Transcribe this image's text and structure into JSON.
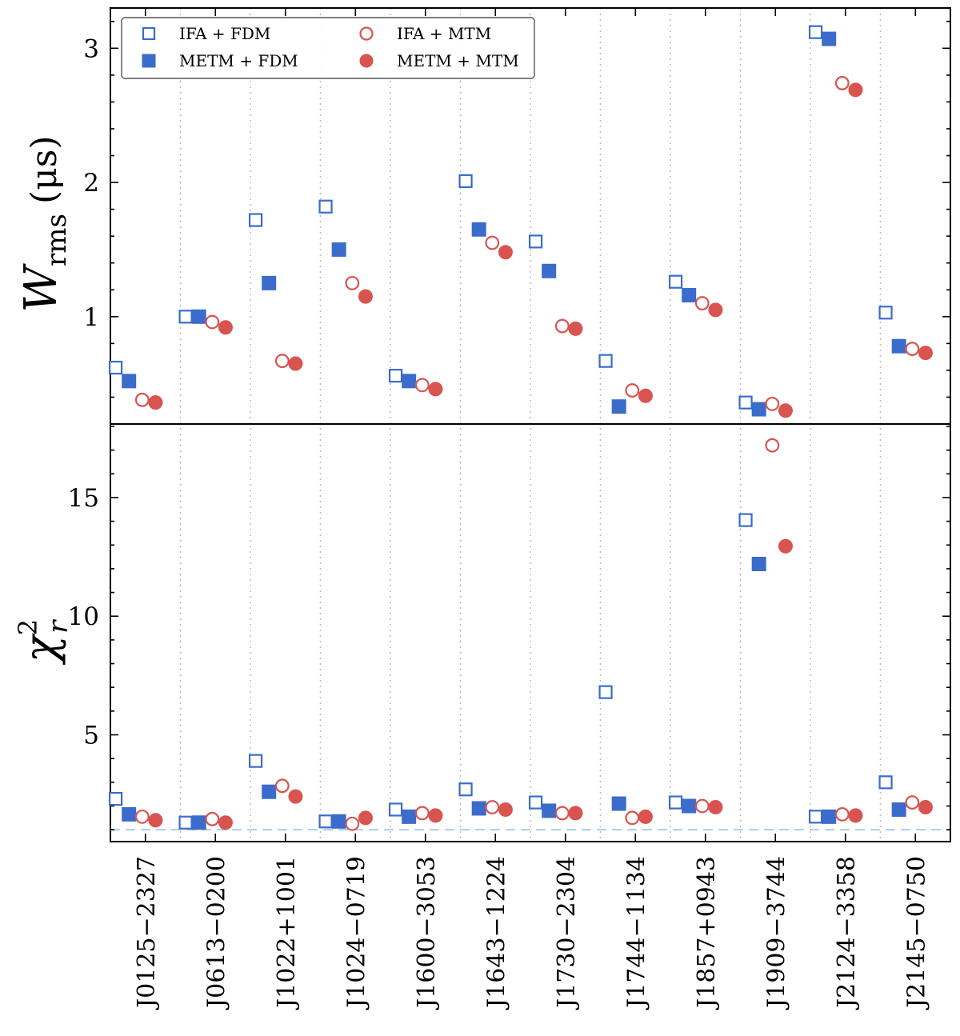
{
  "chart_data": {
    "type": "scatter",
    "categories": [
      "J0125−2327",
      "J0613−0200",
      "J1022+1001",
      "J1024−0719",
      "J1600−3053",
      "J1643−1224",
      "J1730−2304",
      "J1744−1134",
      "J1857+0943",
      "J1909−3744",
      "J2124−3358",
      "J2145−0750"
    ],
    "series_style": [
      {
        "name": "IFA + FDM",
        "marker": "square",
        "filled": false,
        "color": "#3b6ccc"
      },
      {
        "name": "METM + FDM",
        "marker": "square",
        "filled": true,
        "color": "#3b6ccc"
      },
      {
        "name": "IFA + MTM",
        "marker": "circle",
        "filled": false,
        "color": "#d9534f"
      },
      {
        "name": "METM + MTM",
        "marker": "circle",
        "filled": true,
        "color": "#d9534f"
      }
    ],
    "panels": [
      {
        "id": "wrms",
        "ylabel_main": "W",
        "ylabel_sub": "rms",
        "ylabel_unit": "(μs)",
        "ylim": [
          0.2,
          3.3
        ],
        "yticks": [
          1,
          2,
          3
        ],
        "values": [
          [
            0.62,
            1.0,
            1.72,
            1.82,
            0.56,
            2.01,
            1.56,
            0.67,
            1.26,
            0.36,
            3.12,
            1.03
          ],
          [
            0.52,
            1.0,
            1.25,
            1.5,
            0.52,
            1.65,
            1.34,
            0.33,
            1.16,
            0.31,
            3.07,
            0.78
          ],
          [
            0.38,
            0.96,
            0.67,
            1.25,
            0.49,
            1.55,
            0.93,
            0.45,
            1.1,
            0.35,
            2.74,
            0.76
          ],
          [
            0.36,
            0.92,
            0.65,
            1.15,
            0.46,
            1.48,
            0.91,
            0.41,
            1.05,
            0.3,
            2.69,
            0.73
          ]
        ]
      },
      {
        "id": "chi2",
        "ylabel_main": "χ",
        "ylabel_sub": "r",
        "ylabel_sup": "2",
        "ylim": [
          0.5,
          18.1
        ],
        "yticks": [
          5,
          10,
          15
        ],
        "reference_line": 1,
        "values": [
          [
            2.3,
            1.3,
            3.9,
            1.35,
            1.85,
            2.7,
            2.15,
            6.8,
            2.15,
            14.05,
            1.55,
            3.0
          ],
          [
            1.65,
            1.3,
            2.6,
            1.35,
            1.55,
            1.9,
            1.8,
            2.1,
            2.0,
            12.2,
            1.55,
            1.85
          ],
          [
            1.55,
            1.45,
            2.85,
            1.25,
            1.7,
            1.95,
            1.7,
            1.5,
            2.0,
            17.2,
            1.65,
            2.15
          ],
          [
            1.4,
            1.3,
            2.4,
            1.5,
            1.6,
            1.85,
            1.7,
            1.55,
            1.95,
            12.95,
            1.6,
            1.95
          ]
        ]
      }
    ]
  }
}
